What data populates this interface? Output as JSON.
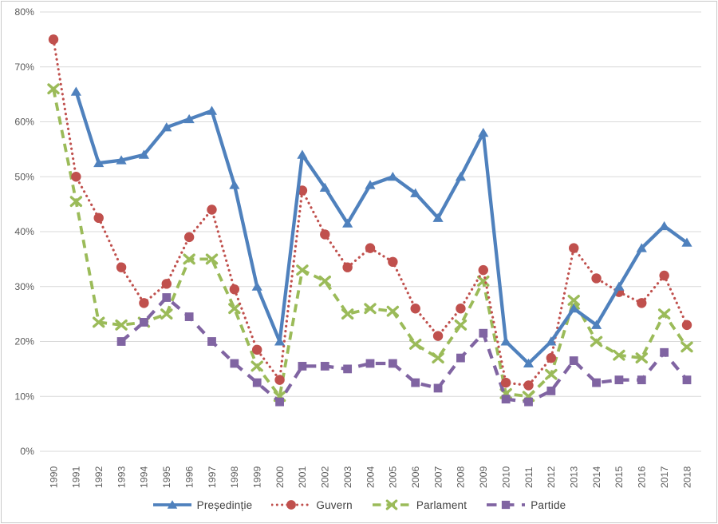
{
  "figure": {
    "background": "#ffffff",
    "border_color": "#c9c9c9",
    "axis_text_color": "#595959",
    "gridline_color": "#d9d9d9",
    "legend_text_color": "#3f3f3f"
  },
  "chart_data": {
    "type": "line",
    "title": "",
    "xlabel": "",
    "ylabel": "",
    "grid": "horizontal",
    "legend_position": "bottom",
    "x": [
      "1990",
      "1991",
      "1992",
      "1993",
      "1994",
      "1995",
      "1996",
      "1997",
      "1998",
      "1999",
      "2000",
      "2001",
      "2002",
      "2003",
      "2004",
      "2005",
      "2006",
      "2007",
      "2008",
      "2009",
      "2010",
      "2011",
      "2012",
      "2013",
      "2014",
      "2015",
      "2016",
      "2017",
      "2018"
    ],
    "y_axis": {
      "min": 0,
      "max": 80,
      "step": 10,
      "format": "percent",
      "tick_labels": [
        "0%",
        "10%",
        "20%",
        "30%",
        "40%",
        "50%",
        "60%",
        "70%",
        "80%"
      ]
    },
    "series": [
      {
        "id": "presedintie",
        "name": "Președinție",
        "color": "#4F81BD",
        "line_style": "solid",
        "marker": "triangle",
        "values": [
          null,
          65.5,
          52.5,
          53,
          54,
          59,
          60.5,
          62,
          48.5,
          30,
          20,
          54,
          48,
          41.5,
          48.5,
          50,
          47,
          42.5,
          50,
          58,
          20,
          16,
          20,
          26,
          23,
          30,
          37,
          41,
          38
        ]
      },
      {
        "id": "guvern",
        "name": "Guvern",
        "color": "#C0504D",
        "line_style": "dotted",
        "marker": "circle",
        "values": [
          75,
          50,
          42.5,
          33.5,
          27,
          30.5,
          39,
          44,
          29.5,
          18.5,
          13,
          47.5,
          39.5,
          33.5,
          37,
          34.5,
          26,
          21,
          26,
          33,
          12.5,
          12,
          17,
          37,
          31.5,
          29,
          27,
          32,
          23
        ]
      },
      {
        "id": "parlament",
        "name": "Parlament",
        "color": "#9BBB59",
        "line_style": "dashed",
        "marker": "x",
        "values": [
          66,
          45.5,
          23.5,
          23,
          23.5,
          25,
          35,
          35,
          26,
          15.5,
          10,
          33,
          31,
          25,
          26,
          25.5,
          19.5,
          17,
          23,
          31,
          10.5,
          10,
          14,
          27.5,
          20,
          17.5,
          17,
          25,
          19
        ]
      },
      {
        "id": "partide",
        "name": "Partide",
        "color": "#8064A2",
        "line_style": "long-dash",
        "marker": "square",
        "values": [
          null,
          null,
          null,
          20,
          23.5,
          28,
          24.5,
          20,
          16,
          12.5,
          9,
          15.5,
          15.5,
          15,
          16,
          16,
          12.5,
          11.5,
          17,
          21.5,
          9.5,
          9,
          11,
          16.5,
          12.5,
          13,
          13,
          18,
          13
        ]
      }
    ]
  }
}
